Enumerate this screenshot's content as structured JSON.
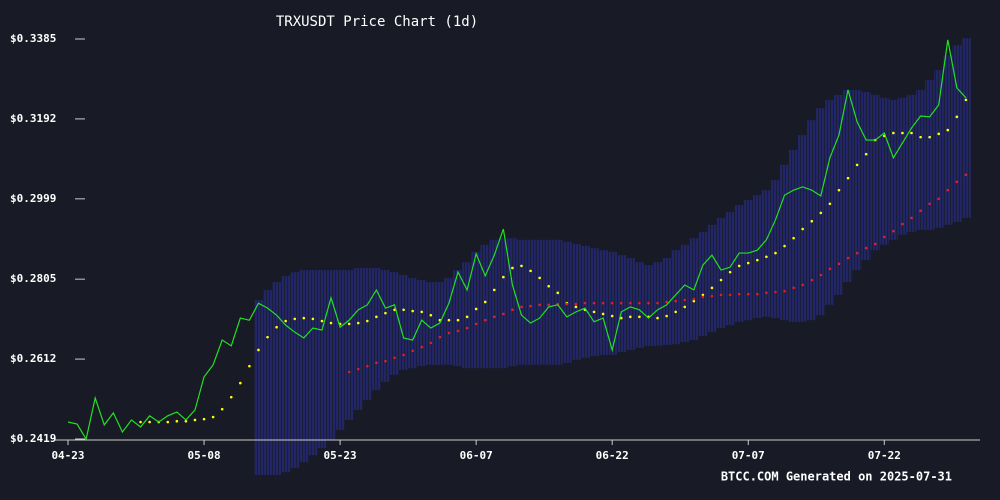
{
  "chart_data": {
    "type": "line",
    "title": "TRXUSDT Price Chart (1d)",
    "footer": "BTCC.COM Generated on 2025-07-31",
    "x": [
      "04-23",
      "04-24",
      "04-25",
      "04-26",
      "04-27",
      "04-28",
      "04-29",
      "04-30",
      "05-01",
      "05-02",
      "05-03",
      "05-04",
      "05-05",
      "05-06",
      "05-07",
      "05-08",
      "05-09",
      "05-10",
      "05-11",
      "05-12",
      "05-13",
      "05-14",
      "05-15",
      "05-16",
      "05-17",
      "05-18",
      "05-19",
      "05-20",
      "05-21",
      "05-22",
      "05-23",
      "05-24",
      "05-25",
      "05-26",
      "05-27",
      "05-28",
      "05-29",
      "05-30",
      "05-31",
      "06-01",
      "06-02",
      "06-03",
      "06-04",
      "06-05",
      "06-06",
      "06-07",
      "06-08",
      "06-09",
      "06-10",
      "06-11",
      "06-12",
      "06-13",
      "06-14",
      "06-15",
      "06-16",
      "06-17",
      "06-18",
      "06-19",
      "06-20",
      "06-21",
      "06-22",
      "06-23",
      "06-24",
      "06-25",
      "06-26",
      "06-27",
      "06-28",
      "06-29",
      "06-30",
      "07-01",
      "07-02",
      "07-03",
      "07-04",
      "07-05",
      "07-06",
      "07-07",
      "07-08",
      "07-09",
      "07-10",
      "07-11",
      "07-12",
      "07-13",
      "07-14",
      "07-15",
      "07-16",
      "07-17",
      "07-18",
      "07-19",
      "07-20",
      "07-21",
      "07-22",
      "07-23",
      "07-24",
      "07-25",
      "07-26",
      "07-27",
      "07-28",
      "07-29",
      "07-30",
      "07-31"
    ],
    "xticks": [
      "04-23",
      "05-08",
      "05-23",
      "06-07",
      "06-22",
      "07-07",
      "07-22"
    ],
    "ylim": [
      0.2419,
      0.3385
    ],
    "yticks": [
      {
        "value": 0.2419,
        "label": "$0.2419"
      },
      {
        "value": 0.2612,
        "label": "$0.2612"
      },
      {
        "value": 0.2805,
        "label": "$0.2805"
      },
      {
        "value": 0.2999,
        "label": "$0.2999"
      },
      {
        "value": 0.3192,
        "label": "$0.3192"
      },
      {
        "value": 0.3385,
        "label": "$0.3385"
      }
    ],
    "series": [
      {
        "color": "#22e022",
        "style": "line",
        "values": [
          0.246,
          0.2455,
          0.2419,
          0.2518,
          0.2453,
          0.2482,
          0.2436,
          0.2465,
          0.2448,
          0.2475,
          0.246,
          0.2475,
          0.2484,
          0.2465,
          0.2489,
          0.2569,
          0.2598,
          0.2658,
          0.2644,
          0.2711,
          0.2706,
          0.2747,
          0.2735,
          0.2718,
          0.2694,
          0.2677,
          0.2663,
          0.2687,
          0.2682,
          0.276,
          0.2689,
          0.2706,
          0.2731,
          0.2743,
          0.2779,
          0.2735,
          0.2743,
          0.2663,
          0.2658,
          0.2706,
          0.2687,
          0.2699,
          0.2747,
          0.2822,
          0.2779,
          0.2866,
          0.2813,
          0.2863,
          0.2926,
          0.2791,
          0.2718,
          0.2699,
          0.2711,
          0.2738,
          0.2743,
          0.2714,
          0.2726,
          0.2735,
          0.2702,
          0.2711,
          0.2634,
          0.2726,
          0.2738,
          0.2731,
          0.2711,
          0.2731,
          0.2743,
          0.2767,
          0.2791,
          0.2779,
          0.2839,
          0.2863,
          0.2827,
          0.2834,
          0.2868,
          0.2868,
          0.2875,
          0.29,
          0.2948,
          0.3008,
          0.302,
          0.3028,
          0.302,
          0.3006,
          0.3098,
          0.3153,
          0.3262,
          0.3185,
          0.3141,
          0.3141,
          0.3158,
          0.3098,
          0.3134,
          0.317,
          0.3199,
          0.3197,
          0.3226,
          0.3383,
          0.3267,
          0.3243
        ]
      },
      {
        "color": "#ffff00",
        "style": "dots",
        "values": [
          null,
          null,
          null,
          null,
          null,
          null,
          null,
          null,
          0.246,
          0.246,
          0.246,
          0.246,
          0.2462,
          0.2462,
          0.2465,
          0.2467,
          0.2472,
          0.2491,
          0.252,
          0.2554,
          0.2595,
          0.2634,
          0.2665,
          0.2689,
          0.2704,
          0.2709,
          0.2711,
          0.2709,
          0.2704,
          0.2699,
          0.2697,
          0.2697,
          0.2699,
          0.2704,
          0.2714,
          0.2723,
          0.2731,
          0.2731,
          0.2728,
          0.2726,
          0.2718,
          0.2706,
          0.2706,
          0.2706,
          0.2714,
          0.2733,
          0.275,
          0.2779,
          0.281,
          0.2832,
          0.2837,
          0.2825,
          0.2808,
          0.2788,
          0.2772,
          0.2747,
          0.2738,
          0.2731,
          0.2726,
          0.2721,
          0.2716,
          0.2711,
          0.2714,
          0.2714,
          0.2714,
          0.2711,
          0.2716,
          0.2726,
          0.2738,
          0.2752,
          0.2767,
          0.2784,
          0.2803,
          0.2822,
          0.2837,
          0.2844,
          0.2851,
          0.2859,
          0.2868,
          0.2885,
          0.2904,
          0.2926,
          0.2945,
          0.2965,
          0.2987,
          0.302,
          0.3049,
          0.3081,
          0.3107,
          0.3141,
          0.3151,
          0.3158,
          0.3158,
          0.3158,
          0.3148,
          0.3148,
          0.3156,
          0.3165,
          0.3197,
          0.3238
        ]
      },
      {
        "color": "#e02020",
        "style": "dots",
        "values": [
          null,
          null,
          null,
          null,
          null,
          null,
          null,
          null,
          null,
          null,
          null,
          null,
          null,
          null,
          null,
          null,
          null,
          null,
          null,
          null,
          null,
          null,
          null,
          null,
          null,
          null,
          null,
          null,
          null,
          null,
          null,
          0.2581,
          0.2588,
          0.2595,
          0.2603,
          0.2607,
          0.2615,
          0.2622,
          0.2632,
          0.2641,
          0.2651,
          0.2665,
          0.2675,
          0.268,
          0.2687,
          0.2697,
          0.2706,
          0.2714,
          0.2721,
          0.2731,
          0.2738,
          0.274,
          0.2743,
          0.2743,
          0.2745,
          0.2745,
          0.2745,
          0.2747,
          0.2747,
          0.2747,
          0.2747,
          0.2747,
          0.2747,
          0.2747,
          0.2747,
          0.2747,
          0.275,
          0.2752,
          0.2755,
          0.2757,
          0.2762,
          0.2764,
          0.2767,
          0.2767,
          0.2769,
          0.2769,
          0.2769,
          0.2772,
          0.2774,
          0.2776,
          0.2784,
          0.2791,
          0.2803,
          0.2815,
          0.283,
          0.2842,
          0.2856,
          0.2868,
          0.288,
          0.289,
          0.2907,
          0.2921,
          0.2938,
          0.2953,
          0.297,
          0.2987,
          0.2999,
          0.302,
          0.304,
          0.3057
        ]
      }
    ],
    "band": {
      "color": "#2a2fa0",
      "upper": [
        null,
        null,
        null,
        null,
        null,
        null,
        null,
        null,
        null,
        null,
        null,
        null,
        null,
        null,
        null,
        null,
        null,
        null,
        null,
        null,
        null,
        0.2755,
        0.2779,
        0.2798,
        0.2813,
        0.2822,
        0.2827,
        0.2827,
        0.2827,
        0.2827,
        0.2827,
        0.2827,
        0.2832,
        0.2832,
        0.2832,
        0.2827,
        0.2822,
        0.2815,
        0.2808,
        0.2803,
        0.2798,
        0.2798,
        0.2808,
        0.2827,
        0.2846,
        0.2871,
        0.2888,
        0.29,
        0.2904,
        0.2904,
        0.29,
        0.29,
        0.29,
        0.29,
        0.29,
        0.2895,
        0.289,
        0.2885,
        0.288,
        0.2875,
        0.2871,
        0.2863,
        0.2856,
        0.2846,
        0.2839,
        0.2846,
        0.2856,
        0.2875,
        0.2888,
        0.2904,
        0.2919,
        0.2936,
        0.2953,
        0.2967,
        0.2984,
        0.2996,
        0.3008,
        0.302,
        0.3044,
        0.3081,
        0.3117,
        0.3153,
        0.3189,
        0.3218,
        0.3238,
        0.325,
        0.3262,
        0.3262,
        0.3257,
        0.325,
        0.3243,
        0.3238,
        0.3243,
        0.325,
        0.3262,
        0.3286,
        0.331,
        0.3346,
        0.337,
        0.3387
      ],
      "lower": [
        null,
        null,
        null,
        null,
        null,
        null,
        null,
        null,
        null,
        null,
        null,
        null,
        null,
        null,
        null,
        null,
        null,
        null,
        null,
        null,
        null,
        0.2332,
        0.2332,
        0.2332,
        0.2339,
        0.2349,
        0.2363,
        0.238,
        0.2397,
        0.2417,
        0.2441,
        0.2465,
        0.2489,
        0.2513,
        0.2537,
        0.2557,
        0.2574,
        0.2586,
        0.259,
        0.2595,
        0.2598,
        0.2598,
        0.2598,
        0.2595,
        0.259,
        0.259,
        0.259,
        0.259,
        0.259,
        0.2595,
        0.2598,
        0.2598,
        0.2598,
        0.2598,
        0.2598,
        0.2603,
        0.261,
        0.2615,
        0.2619,
        0.2622,
        0.2622,
        0.2629,
        0.2634,
        0.2639,
        0.2644,
        0.2644,
        0.2646,
        0.2648,
        0.2653,
        0.2658,
        0.2668,
        0.2677,
        0.2687,
        0.2694,
        0.2702,
        0.2706,
        0.2711,
        0.2714,
        0.2711,
        0.2706,
        0.2702,
        0.2702,
        0.2706,
        0.2718,
        0.2743,
        0.2767,
        0.2798,
        0.2827,
        0.2851,
        0.2875,
        0.2888,
        0.29,
        0.2912,
        0.2919,
        0.2924,
        0.2924,
        0.2929,
        0.2936,
        0.2943,
        0.2953
      ]
    }
  }
}
